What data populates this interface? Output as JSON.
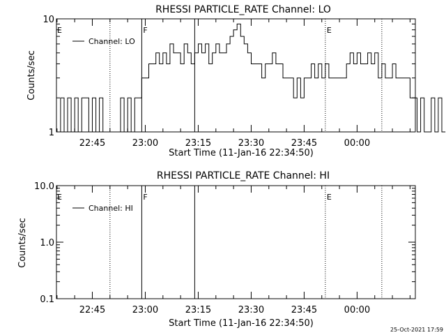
{
  "chart_data": [
    {
      "type": "line",
      "title": "RHESSI PARTICLE_RATE Channel: LO",
      "xlabel": "Start Time (11-Jan-16 22:34:50)",
      "ylabel": "Counts/sec",
      "y_scale": "log",
      "ylim": [
        1,
        10
      ],
      "y_ticks": [
        {
          "value": 1,
          "label": "1"
        },
        {
          "value": 10,
          "label": "10"
        }
      ],
      "xlim": [
        "22:34:50",
        "00:16:30"
      ],
      "x_ticks": [
        {
          "value": "22:45",
          "label": "22:45"
        },
        {
          "value": "23:00",
          "label": "23:00"
        },
        {
          "value": "23:15",
          "label": "23:15"
        },
        {
          "value": "23:30",
          "label": "23:30"
        },
        {
          "value": "23:45",
          "label": "23:45"
        },
        {
          "value": "00:00",
          "label": "00:00"
        }
      ],
      "legend": {
        "placement": "top-left",
        "entries": [
          "Channel: LO"
        ]
      },
      "grid": false,
      "series": [
        {
          "name": "Channel: LO",
          "color": "#000000",
          "step": "1 min",
          "x_start": "22:35",
          "values": [
            1,
            2,
            1,
            2,
            1,
            2,
            1,
            2,
            2,
            1,
            2,
            1,
            2,
            1,
            1,
            1,
            1,
            1,
            2,
            1,
            2,
            1,
            2,
            2,
            3,
            3,
            4,
            4,
            5,
            4,
            5,
            4,
            6,
            5,
            5,
            4,
            6,
            5,
            4,
            5,
            6,
            5,
            6,
            4,
            5,
            6,
            5,
            5,
            6,
            7,
            8,
            9,
            7,
            6,
            5,
            4,
            4,
            4,
            3,
            4,
            4,
            5,
            4,
            4,
            3,
            3,
            3,
            2,
            3,
            2,
            3,
            3,
            4,
            3,
            4,
            3,
            4,
            3,
            3,
            3,
            3,
            3,
            4,
            5,
            4,
            5,
            4,
            4,
            5,
            4,
            5,
            3,
            4,
            3,
            3,
            4,
            3,
            3,
            3,
            3,
            2,
            2,
            1,
            2,
            1,
            1,
            2,
            1,
            2,
            1
          ]
        }
      ],
      "vertical_markers": [
        {
          "time": "22:50",
          "style": "dotted",
          "label": ""
        },
        {
          "time": "22:59",
          "style": "solid",
          "label": "F"
        },
        {
          "time": "23:14",
          "style": "solid",
          "label": ""
        },
        {
          "time": "23:51",
          "style": "dotted",
          "label": "E"
        },
        {
          "time": "00:07",
          "style": "dotted",
          "label": ""
        }
      ],
      "corner_label": "E"
    },
    {
      "type": "line",
      "title": "RHESSI PARTICLE_RATE Channel: HI",
      "xlabel": "Start Time (11-Jan-16 22:34:50)",
      "ylabel": "Counts/sec",
      "y_scale": "log",
      "ylim": [
        0.1,
        10
      ],
      "y_ticks": [
        {
          "value": 0.1,
          "label": "0.1"
        },
        {
          "value": 1,
          "label": "1.0"
        },
        {
          "value": 10,
          "label": "10.0"
        }
      ],
      "xlim": [
        "22:34:50",
        "00:16:30"
      ],
      "x_ticks": [
        {
          "value": "22:45",
          "label": "22:45"
        },
        {
          "value": "23:00",
          "label": "23:00"
        },
        {
          "value": "23:15",
          "label": "23:15"
        },
        {
          "value": "23:30",
          "label": "23:30"
        },
        {
          "value": "23:45",
          "label": "23:45"
        },
        {
          "value": "00:00",
          "label": "00:00"
        }
      ],
      "legend": {
        "placement": "top-left",
        "entries": [
          "Channel: HI"
        ]
      },
      "grid": false,
      "series": [
        {
          "name": "Channel: HI",
          "color": "#000000",
          "values": []
        }
      ],
      "vertical_markers": [
        {
          "time": "22:50",
          "style": "dotted",
          "label": ""
        },
        {
          "time": "22:59",
          "style": "solid",
          "label": "F"
        },
        {
          "time": "23:14",
          "style": "solid",
          "label": ""
        },
        {
          "time": "23:51",
          "style": "dotted",
          "label": "E"
        },
        {
          "time": "00:07",
          "style": "dotted",
          "label": ""
        }
      ],
      "corner_label": "E"
    }
  ],
  "footer": {
    "timestamp": "25-Oct-2021 17:59"
  }
}
